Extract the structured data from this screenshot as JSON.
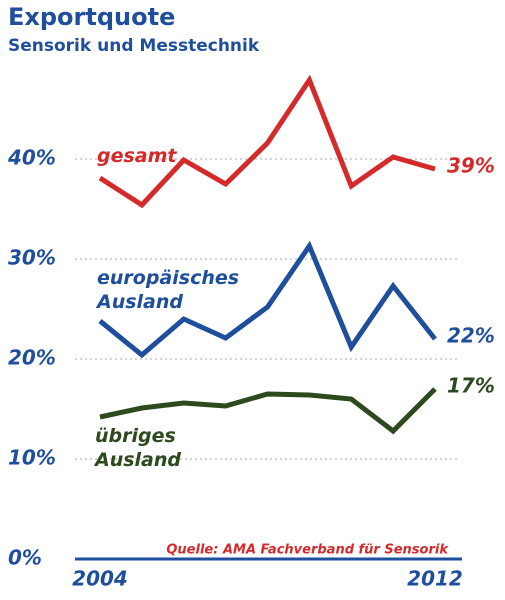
{
  "chart_data": {
    "type": "line",
    "title": "Exportquote",
    "subtitle": "Sensorik und Messtechnik",
    "source": "Quelle: AMA Fachverband für Sensorik",
    "categories": [
      "2004",
      null,
      null,
      null,
      null,
      null,
      null,
      null,
      "2012"
    ],
    "series": [
      {
        "name": "gesamt",
        "color": "#d42a2a",
        "values": [
          38.1,
          35.4,
          39.9,
          37.5,
          41.6,
          47.9,
          37.3,
          40.2,
          39
        ],
        "value_labels": [
          null,
          null,
          null,
          null,
          null,
          null,
          null,
          null,
          "39%"
        ]
      },
      {
        "name": "europäisches Ausland",
        "color": "#1f4e9c",
        "values": [
          23.8,
          20.4,
          24,
          22.1,
          25.2,
          31.3,
          21.2,
          27.3,
          22
        ],
        "value_labels": [
          null,
          null,
          null,
          null,
          null,
          null,
          null,
          null,
          "22%"
        ]
      },
      {
        "name": "übriges Ausland",
        "color": "#2d4a1e",
        "values": [
          14.2,
          15.1,
          15.6,
          15.3,
          16.5,
          16.4,
          16,
          12.8,
          17
        ],
        "value_labels": [
          null,
          null,
          null,
          null,
          null,
          null,
          null,
          null,
          "17%"
        ]
      }
    ],
    "ylim": [
      0,
      50
    ],
    "yticks": [
      {
        "value": 0,
        "label": "0%"
      },
      {
        "value": 10,
        "label": "10%"
      },
      {
        "value": 20,
        "label": "20%"
      },
      {
        "value": 30,
        "label": "30%"
      },
      {
        "value": 40,
        "label": "40%"
      }
    ],
    "grid": true
  }
}
